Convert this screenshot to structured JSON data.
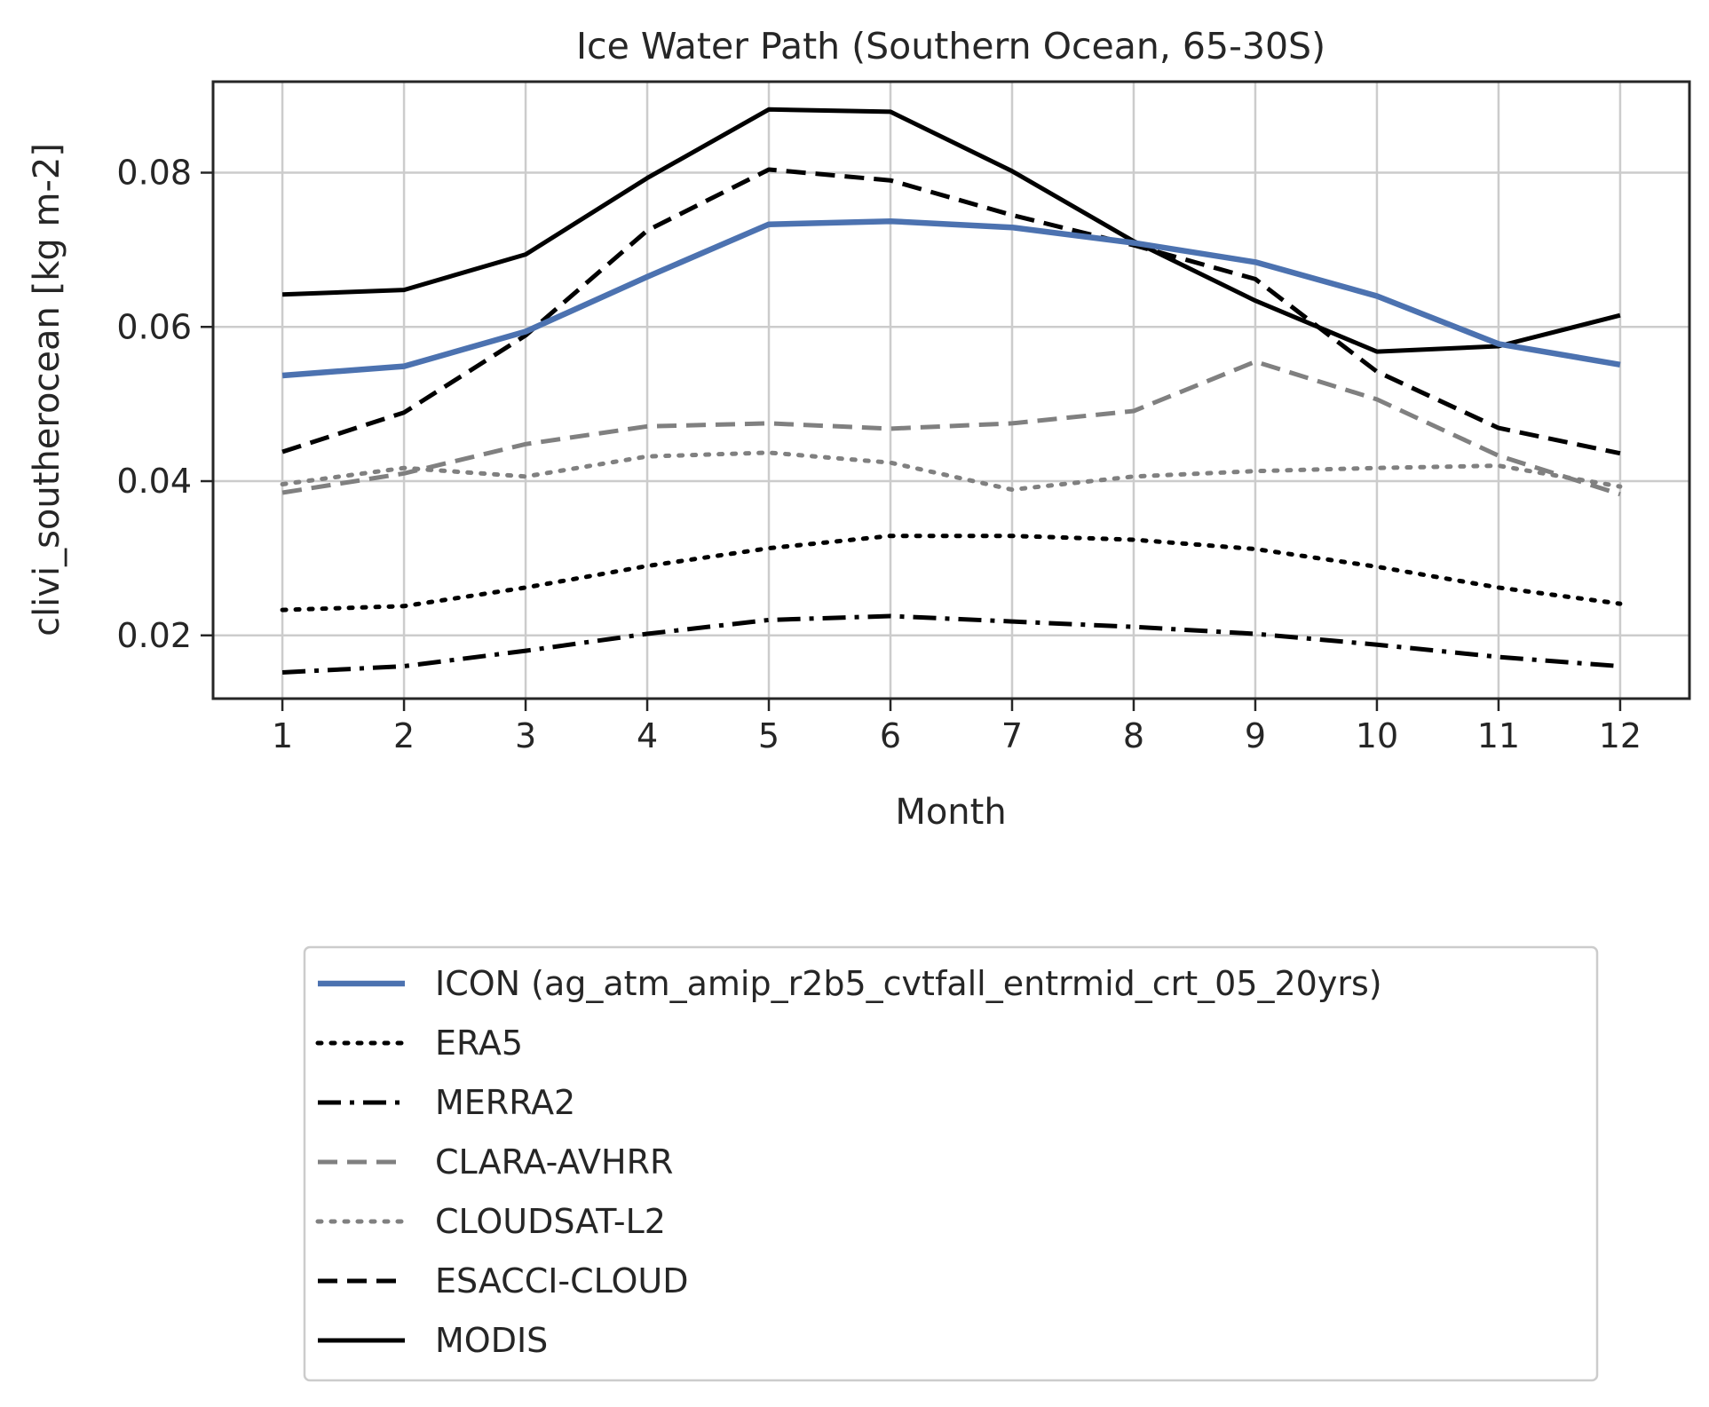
{
  "chart_data": {
    "type": "line",
    "title": "Ice Water Path (Southern Ocean, 65-30S)",
    "xlabel": "Month",
    "ylabel": "clivi_southerocean [kg m-2]",
    "x": [
      1,
      2,
      3,
      4,
      5,
      6,
      7,
      8,
      9,
      10,
      11,
      12
    ],
    "xticks": [
      "1",
      "2",
      "3",
      "4",
      "5",
      "6",
      "7",
      "8",
      "9",
      "10",
      "11",
      "12"
    ],
    "xlim": [
      0.43,
      12.57
    ],
    "ylim": [
      0.0118,
      0.0918
    ],
    "yticks": [
      0.02,
      0.04,
      0.06,
      0.08
    ],
    "ytick_labels": [
      "0.02",
      "0.04",
      "0.06",
      "0.08"
    ],
    "grid": true,
    "legend_position": "below the plot",
    "series": [
      {
        "name": "ICON (ag_atm_amip_r2b5_cvtfall_entrmid_crt_05_20yrs)",
        "color": "#4c72b0",
        "style": "solid",
        "values": [
          0.0537,
          0.0549,
          0.0594,
          0.0665,
          0.0733,
          0.0737,
          0.0729,
          0.0709,
          0.0684,
          0.064,
          0.0578,
          0.0551
        ]
      },
      {
        "name": "ERA5",
        "color": "#000000",
        "style": "dotted",
        "values": [
          0.0233,
          0.0238,
          0.0262,
          0.029,
          0.0313,
          0.0329,
          0.0329,
          0.0324,
          0.0312,
          0.0289,
          0.0262,
          0.0241
        ]
      },
      {
        "name": "MERRA2",
        "color": "#000000",
        "style": "dashdot",
        "values": [
          0.0152,
          0.016,
          0.018,
          0.0202,
          0.022,
          0.0225,
          0.0218,
          0.0211,
          0.0202,
          0.0188,
          0.0172,
          0.016
        ]
      },
      {
        "name": "CLARA-AVHRR",
        "color": "#808080",
        "style": "dashed",
        "values": [
          0.0385,
          0.041,
          0.0448,
          0.0471,
          0.0475,
          0.0468,
          0.0475,
          0.0491,
          0.0555,
          0.0506,
          0.0433,
          0.0383
        ]
      },
      {
        "name": "CLOUDSAT-L2",
        "color": "#808080",
        "style": "dotted",
        "values": [
          0.0396,
          0.0417,
          0.0406,
          0.0432,
          0.0437,
          0.0424,
          0.0389,
          0.0406,
          0.0413,
          0.0417,
          0.042,
          0.0393
        ]
      },
      {
        "name": "ESACCI-CLOUD",
        "color": "#000000",
        "style": "dashed",
        "values": [
          0.0438,
          0.0489,
          0.0589,
          0.0725,
          0.0804,
          0.079,
          0.0745,
          0.0706,
          0.0662,
          0.0542,
          0.0469,
          0.0436
        ]
      },
      {
        "name": "MODIS",
        "color": "#000000",
        "style": "solid",
        "values": [
          0.0642,
          0.0648,
          0.0694,
          0.0793,
          0.0882,
          0.0879,
          0.0802,
          0.0711,
          0.0634,
          0.0568,
          0.0575,
          0.0615
        ]
      }
    ]
  }
}
